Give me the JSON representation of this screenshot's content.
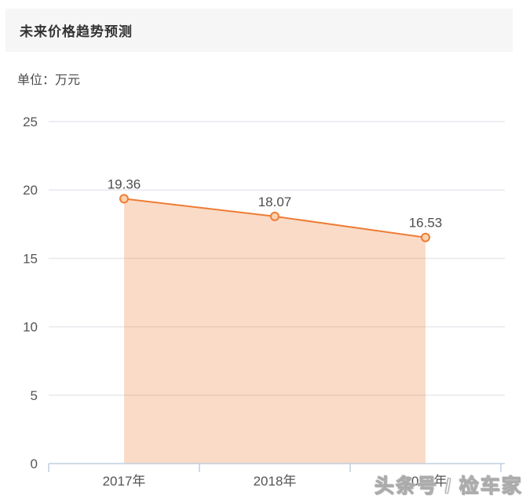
{
  "header": {
    "title": "未来价格趋势预测"
  },
  "unit_label": "单位：万元",
  "watermark": {
    "text": "头条号 / 检车家"
  },
  "chart_data": {
    "type": "area",
    "title": "未来价格趋势预测",
    "subtitle_unit": "单位：万元",
    "categories": [
      "2017年",
      "2018年",
      "2019年"
    ],
    "values": [
      19.36,
      18.07,
      16.53
    ],
    "value_labels": [
      "19.36",
      "18.07",
      "16.53"
    ],
    "xlabel": "",
    "ylabel": "万元",
    "ylim": [
      0,
      25
    ],
    "y_ticks": [
      0,
      5,
      10,
      15,
      20,
      25
    ],
    "grid": true,
    "legend_position": "none",
    "colors": {
      "line": "#ee7c36",
      "area_fill": "rgba(238,124,54,0.28)",
      "marker_fill": "#fbd2ae",
      "marker_stroke": "#ee7c36",
      "gridline": "#e6e9ed",
      "axis_line": "#c0cfdd",
      "value_label_text": "#4d4d4d",
      "axis_tick_text": "#555555"
    }
  }
}
